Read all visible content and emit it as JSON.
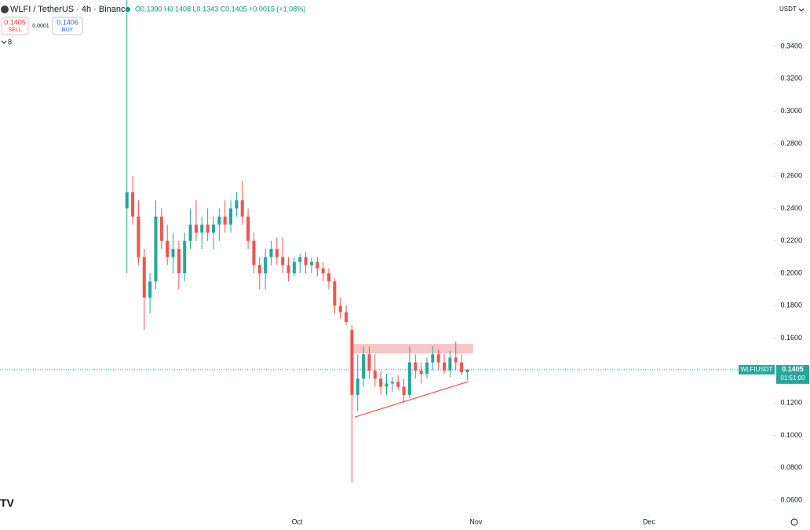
{
  "header": {
    "title": "WLFI / TetherUS · 4h · Binance",
    "ohlc": "O0.1390 H0.1408 L0.1343 C0.1405 +0.0015 (+1.08%)",
    "sell_price": "0.1405",
    "sell": "SELL",
    "spread": "0.0001",
    "buy_price": "0.1406",
    "buy": "BUY",
    "indicators": "8",
    "currency": "USDT"
  },
  "chart_data": {
    "type": "candlestick",
    "x": [
      0.5,
      1.5,
      2.5,
      3.5,
      4.5,
      5.5,
      6.5,
      7.5,
      8.5,
      9.5,
      10.5,
      11.5,
      12.5,
      13.5,
      14.5,
      15.5,
      16.5,
      17.5,
      18.5,
      19.5,
      20.5,
      21.5,
      22.5,
      23.5,
      24.5,
      25.5,
      26.5,
      27.5,
      28.5,
      29.5,
      30.5,
      31.5,
      32.5,
      33.5,
      34.5,
      35.5,
      36.5,
      37.5,
      38.5,
      39.5,
      40.5,
      41.5,
      42.5,
      43.5,
      44.5,
      45.5,
      46.5,
      47.5,
      48.5,
      49.5,
      50.5,
      51.5,
      52.5,
      53.5,
      54.5,
      55.5,
      56.5,
      57.5,
      58.5,
      59.5
    ],
    "open": [
      0.24,
      0.25,
      0.235,
      0.21,
      0.185,
      0.195,
      0.235,
      0.22,
      0.21,
      0.215,
      0.2,
      0.22,
      0.23,
      0.225,
      0.23,
      0.225,
      0.23,
      0.235,
      0.23,
      0.24,
      0.245,
      0.235,
      0.22,
      0.205,
      0.2,
      0.21,
      0.215,
      0.21,
      0.205,
      0.2,
      0.207,
      0.21,
      0.205,
      0.207,
      0.203,
      0.2,
      0.195,
      0.18,
      0.176,
      0.165,
      0.125,
      0.135,
      0.15,
      0.14,
      0.135,
      0.13,
      0.132,
      0.133,
      0.13,
      0.125,
      0.145,
      0.14,
      0.138,
      0.145,
      0.15,
      0.145,
      0.14,
      0.148,
      0.145,
      0.139
    ],
    "high": [
      0.37,
      0.26,
      0.245,
      0.215,
      0.2,
      0.245,
      0.24,
      0.23,
      0.225,
      0.22,
      0.225,
      0.24,
      0.245,
      0.235,
      0.24,
      0.235,
      0.24,
      0.245,
      0.245,
      0.25,
      0.257,
      0.24,
      0.225,
      0.21,
      0.215,
      0.22,
      0.222,
      0.222,
      0.21,
      0.21,
      0.212,
      0.213,
      0.21,
      0.21,
      0.207,
      0.203,
      0.197,
      0.185,
      0.18,
      0.168,
      0.15,
      0.155,
      0.155,
      0.15,
      0.14,
      0.138,
      0.136,
      0.137,
      0.135,
      0.155,
      0.15,
      0.145,
      0.148,
      0.155,
      0.153,
      0.15,
      0.152,
      0.158,
      0.15,
      0.141
    ],
    "low": [
      0.2,
      0.23,
      0.205,
      0.165,
      0.175,
      0.19,
      0.215,
      0.205,
      0.2,
      0.19,
      0.195,
      0.215,
      0.22,
      0.215,
      0.22,
      0.215,
      0.22,
      0.225,
      0.225,
      0.235,
      0.23,
      0.215,
      0.2,
      0.19,
      0.19,
      0.205,
      0.205,
      0.2,
      0.195,
      0.198,
      0.2,
      0.2,
      0.2,
      0.198,
      0.195,
      0.19,
      0.175,
      0.172,
      0.168,
      0.071,
      0.115,
      0.13,
      0.135,
      0.13,
      0.125,
      0.125,
      0.127,
      0.128,
      0.12,
      0.123,
      0.135,
      0.132,
      0.135,
      0.14,
      0.14,
      0.138,
      0.136,
      0.14,
      0.137,
      0.134
    ],
    "close": [
      0.25,
      0.235,
      0.21,
      0.185,
      0.195,
      0.235,
      0.22,
      0.21,
      0.215,
      0.2,
      0.22,
      0.23,
      0.225,
      0.23,
      0.225,
      0.23,
      0.235,
      0.23,
      0.24,
      0.245,
      0.235,
      0.22,
      0.205,
      0.2,
      0.21,
      0.215,
      0.21,
      0.205,
      0.2,
      0.207,
      0.21,
      0.205,
      0.207,
      0.203,
      0.2,
      0.195,
      0.18,
      0.176,
      0.17,
      0.125,
      0.135,
      0.15,
      0.14,
      0.135,
      0.13,
      0.132,
      0.133,
      0.13,
      0.125,
      0.145,
      0.14,
      0.138,
      0.145,
      0.15,
      0.145,
      0.14,
      0.148,
      0.145,
      0.139,
      0.1405
    ],
    "up_color": "#26a69a",
    "down_color": "#ef5350",
    "xlim": [
      -21.5,
      112.5
    ],
    "xticks": [
      {
        "value": 30,
        "label": "Oct"
      },
      {
        "value": 61,
        "label": "Nov"
      },
      {
        "value": 91,
        "label": "Dec"
      }
    ],
    "ylim": [
      0.0513,
      0.3686
    ],
    "yticks": [
      {
        "value": 0.06,
        "label": "0.0600"
      },
      {
        "value": 0.08,
        "label": "0.0800"
      },
      {
        "value": 0.1,
        "label": "0.1000"
      },
      {
        "value": 0.12,
        "label": "0.1200"
      },
      {
        "value": 0.16,
        "label": "0.1600"
      },
      {
        "value": 0.18,
        "label": "0.1800"
      },
      {
        "value": 0.2,
        "label": "0.2000"
      },
      {
        "value": 0.22,
        "label": "0.2200"
      },
      {
        "value": 0.24,
        "label": "0.2400"
      },
      {
        "value": 0.26,
        "label": "0.2600"
      },
      {
        "value": 0.28,
        "label": "0.2800"
      },
      {
        "value": 0.3,
        "label": "0.3000"
      },
      {
        "value": 0.32,
        "label": "0.3200"
      },
      {
        "value": 0.34,
        "label": "0.3400"
      }
    ],
    "last_price": 0.1405,
    "symbol": "WLFIUSDT",
    "countdown": "01:51:00",
    "last_color": "#26a69a",
    "zone": {
      "x": [
        39.3,
        60.5
      ],
      "y": [
        0.1506,
        0.1564
      ],
      "color": "#f7c6c4"
    },
    "trendline": {
      "x": [
        40,
        59.7
      ],
      "y": [
        0.1113,
        0.1332
      ],
      "color": "#ef5350"
    }
  }
}
